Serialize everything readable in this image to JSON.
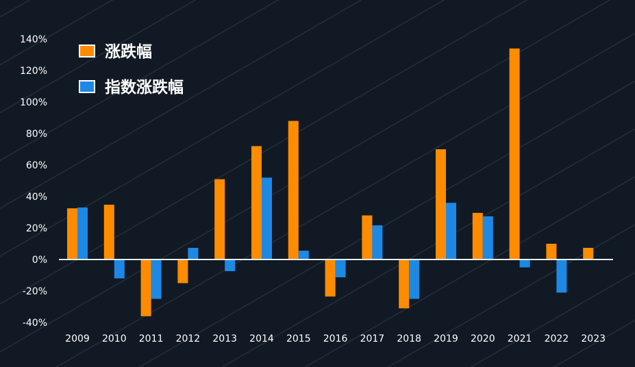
{
  "chart_data": {
    "type": "bar",
    "title": "",
    "xlabel": "",
    "ylabel": "",
    "categories": [
      "2009",
      "2010",
      "2011",
      "2012",
      "2013",
      "2014",
      "2015",
      "2016",
      "2017",
      "2018",
      "2019",
      "2020",
      "2021",
      "2022",
      "2023"
    ],
    "series": [
      {
        "name": "涨跌幅",
        "color": "#ff8c00",
        "values": [
          32.5,
          34.8,
          -36,
          -15,
          51,
          72,
          88,
          -23.5,
          28,
          -31,
          70,
          29.6,
          134,
          10,
          7.4
        ]
      },
      {
        "name": "指数涨跌幅",
        "color": "#1e88e5",
        "values": [
          33,
          -12,
          -25,
          7.4,
          -7.4,
          52,
          5.6,
          -11.3,
          21.7,
          -25,
          36,
          27.4,
          -5,
          -21,
          null
        ]
      }
    ],
    "ylim": [
      -40,
      140
    ],
    "yticks": [
      -40,
      -20,
      0,
      20,
      40,
      60,
      80,
      100,
      120,
      140
    ],
    "ytick_labels": [
      "-40%",
      "-20%",
      "0%",
      "20%",
      "40%",
      "60%",
      "80%",
      "100%",
      "120%",
      "140%"
    ],
    "grid": false,
    "legend": "top-left",
    "background_color": "#111a24"
  }
}
